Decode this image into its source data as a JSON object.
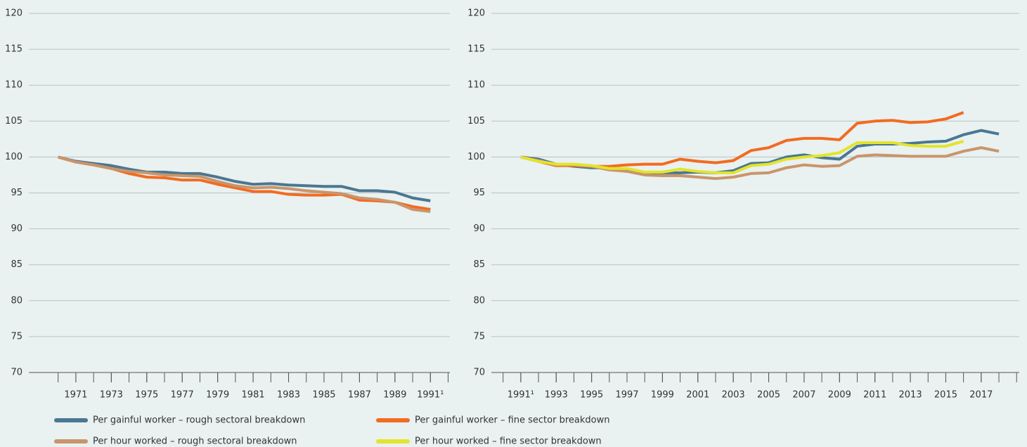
{
  "chart_data": [
    {
      "type": "line",
      "x": [
        1970,
        1971,
        1972,
        1973,
        1974,
        1975,
        1976,
        1977,
        1978,
        1979,
        1980,
        1981,
        1982,
        1983,
        1984,
        1985,
        1986,
        1987,
        1988,
        1989,
        1990,
        1991
      ],
      "xlim": [
        1969.1,
        1992.1
      ],
      "xticks": [
        1971,
        1973,
        1975,
        1977,
        1979,
        1981,
        1983,
        1985,
        1987,
        1989,
        {
          "value": 1991,
          "label": "1991¹"
        }
      ],
      "ylim": [
        70,
        120
      ],
      "yticks": [
        70,
        75,
        80,
        85,
        90,
        95,
        100,
        105,
        110,
        115,
        120
      ],
      "grid": true,
      "series": [
        {
          "color": "#4b7791",
          "values": [
            100,
            99.4,
            99.1,
            98.8,
            98.3,
            97.9,
            97.9,
            97.7,
            97.7,
            97.2,
            96.6,
            96.2,
            96.3,
            96.1,
            96.0,
            95.9,
            95.9,
            95.3,
            95.3,
            95.1,
            94.3,
            93.9
          ]
        },
        {
          "color": "#f26b21",
          "values": [
            100,
            99.3,
            98.9,
            98.4,
            97.7,
            97.2,
            97.1,
            96.8,
            96.8,
            96.2,
            95.7,
            95.2,
            95.2,
            94.8,
            94.7,
            94.7,
            94.8,
            94.0,
            93.9,
            93.7,
            93.1,
            92.7
          ]
        },
        {
          "color": "#c9956b",
          "values": [
            100,
            99.3,
            98.9,
            98.4,
            98.0,
            97.8,
            97.5,
            97.4,
            97.3,
            96.6,
            96.0,
            95.7,
            95.8,
            95.6,
            95.3,
            95.1,
            94.9,
            94.3,
            94.1,
            93.7,
            92.7,
            92.4
          ]
        }
      ]
    },
    {
      "type": "line",
      "x": [
        1991,
        1992,
        1993,
        1994,
        1995,
        1996,
        1997,
        1998,
        1999,
        2000,
        2001,
        2002,
        2003,
        2004,
        2005,
        2006,
        2007,
        2008,
        2009,
        2010,
        2011,
        2012,
        2013,
        2014,
        2015,
        2016,
        2017,
        2018
      ],
      "xlim": [
        1989.1,
        2019.15
      ],
      "xticks": [
        {
          "value": 1991,
          "label": "1991¹"
        },
        1993,
        1995,
        1997,
        1999,
        2001,
        2003,
        2005,
        2007,
        2009,
        2011,
        2013,
        2015,
        2017
      ],
      "ylim": [
        70,
        120
      ],
      "yticks": [
        70,
        75,
        80,
        85,
        90,
        95,
        100,
        105,
        110,
        115,
        120
      ],
      "grid": true,
      "series": [
        {
          "name": "Per gainful worker – rough sectoral breakdown",
          "color": "#4b7791",
          "values": [
            100,
            99.7,
            99.0,
            98.7,
            98.5,
            98.5,
            98.2,
            97.8,
            97.8,
            97.8,
            97.9,
            97.8,
            98.1,
            99.1,
            99.2,
            100.0,
            100.3,
            99.9,
            99.7,
            101.5,
            101.8,
            101.8,
            101.9,
            102.1,
            102.2,
            103.1,
            103.7,
            103.2
          ]
        },
        {
          "name": "Per gainful worker – fine sector breakdown",
          "color": "#f26b21",
          "values": [
            100,
            99.4,
            98.8,
            98.8,
            98.7,
            98.7,
            98.9,
            99.0,
            99.0,
            99.7,
            99.4,
            99.2,
            99.5,
            100.9,
            101.3,
            102.3,
            102.6,
            102.6,
            102.4,
            104.7,
            105.0,
            105.1,
            104.8,
            104.9,
            105.3,
            106.2,
            null,
            null
          ]
        },
        {
          "name": "Per hour worked – rough sectoral breakdown",
          "color": "#c9956b",
          "values": [
            100,
            99.5,
            98.9,
            98.9,
            98.7,
            98.2,
            98.0,
            97.5,
            97.4,
            97.4,
            97.2,
            97.0,
            97.2,
            97.7,
            97.8,
            98.5,
            98.9,
            98.7,
            98.8,
            100.1,
            100.3,
            100.2,
            100.1,
            100.1,
            100.1,
            100.8,
            101.3,
            100.8
          ]
        },
        {
          "name": "Per hour worked – fine sector breakdown",
          "color": "#e3e42b",
          "values": [
            100,
            99.4,
            99.0,
            99.0,
            98.8,
            98.4,
            98.4,
            97.9,
            97.9,
            98.3,
            98.0,
            97.8,
            97.8,
            98.8,
            99.0,
            99.7,
            100.0,
            100.2,
            100.6,
            102.0,
            102.0,
            102.0,
            101.6,
            101.5,
            101.5,
            102.2,
            null,
            null
          ]
        }
      ]
    }
  ]
}
